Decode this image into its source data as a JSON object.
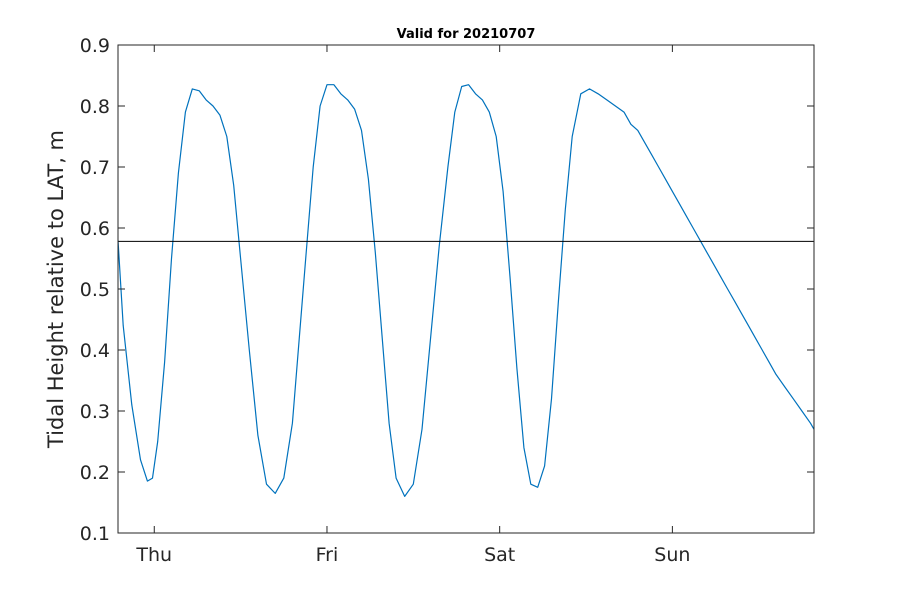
{
  "chart_data": {
    "type": "line",
    "title": "Valid for 20210707",
    "xlabel": "",
    "ylabel": "Tidal Height relative to LAT, m",
    "xlim": [
      -0.21,
      3.82
    ],
    "ylim": [
      0.1,
      0.9
    ],
    "yticks": [
      0.1,
      0.2,
      0.3,
      0.4,
      0.5,
      0.6,
      0.7,
      0.8,
      0.9
    ],
    "ytick_labels": [
      "0.1",
      "0.2",
      "0.3",
      "0.4",
      "0.5",
      "0.6",
      "0.7",
      "0.8",
      "0.9"
    ],
    "xticks": [
      0,
      1,
      2,
      3
    ],
    "xtick_labels": [
      "Thu",
      "Fri",
      "Sat",
      "Sun"
    ],
    "grid": false,
    "series": [
      {
        "color": "#0072bd",
        "x": [
          -0.21,
          -0.18,
          -0.13,
          -0.08,
          -0.04,
          -0.01,
          0.02,
          0.06,
          0.1,
          0.14,
          0.18,
          0.22,
          0.26,
          0.3,
          0.34,
          0.38,
          0.42,
          0.46,
          0.5,
          0.55,
          0.6,
          0.65,
          0.7,
          0.75,
          0.8,
          0.84,
          0.88,
          0.92,
          0.96,
          1.0,
          1.04,
          1.08,
          1.12,
          1.16,
          1.2,
          1.24,
          1.28,
          1.32,
          1.36,
          1.4,
          1.45,
          1.5,
          1.55,
          1.6,
          1.65,
          1.7,
          1.74,
          1.78,
          1.82,
          1.86,
          1.9,
          1.94,
          1.98,
          2.02,
          2.06,
          2.1,
          2.14,
          2.18,
          2.22,
          2.26,
          2.3,
          2.34,
          2.38,
          2.42,
          2.47,
          2.52,
          2.57,
          2.62,
          2.67,
          2.72,
          2.76,
          2.8,
          2.84,
          2.88,
          2.92,
          2.96,
          3.0,
          3.04,
          3.08,
          3.12,
          3.16,
          3.2,
          3.24,
          3.28,
          3.32,
          3.36,
          3.4,
          3.44,
          3.48,
          3.52,
          3.56,
          3.6,
          3.65,
          3.7,
          3.75,
          3.8,
          3.82
        ],
        "y": [
          0.58,
          0.44,
          0.31,
          0.22,
          0.185,
          0.19,
          0.25,
          0.38,
          0.55,
          0.69,
          0.79,
          0.828,
          0.825,
          0.81,
          0.8,
          0.785,
          0.75,
          0.67,
          0.55,
          0.4,
          0.26,
          0.18,
          0.165,
          0.19,
          0.28,
          0.42,
          0.56,
          0.7,
          0.8,
          0.835,
          0.835,
          0.82,
          0.81,
          0.795,
          0.76,
          0.68,
          0.56,
          0.42,
          0.28,
          0.19,
          0.16,
          0.18,
          0.27,
          0.42,
          0.57,
          0.7,
          0.79,
          0.832,
          0.835,
          0.82,
          0.81,
          0.79,
          0.75,
          0.66,
          0.52,
          0.37,
          0.24,
          0.18,
          0.175,
          0.21,
          0.32,
          0.48,
          0.63,
          0.75,
          0.82,
          0.828,
          0.82,
          0.81,
          0.8,
          0.79,
          0.77,
          0.76,
          0.74,
          0.72,
          0.7,
          0.68,
          0.66,
          0.64,
          0.62,
          0.6,
          0.58,
          0.56,
          0.54,
          0.52,
          0.5,
          0.48,
          0.46,
          0.44,
          0.42,
          0.4,
          0.38,
          0.36,
          0.34,
          0.32,
          0.3,
          0.28,
          0.27
        ]
      }
    ],
    "reference_lines": [
      {
        "y": 0.578,
        "color": "#000000"
      }
    ]
  }
}
